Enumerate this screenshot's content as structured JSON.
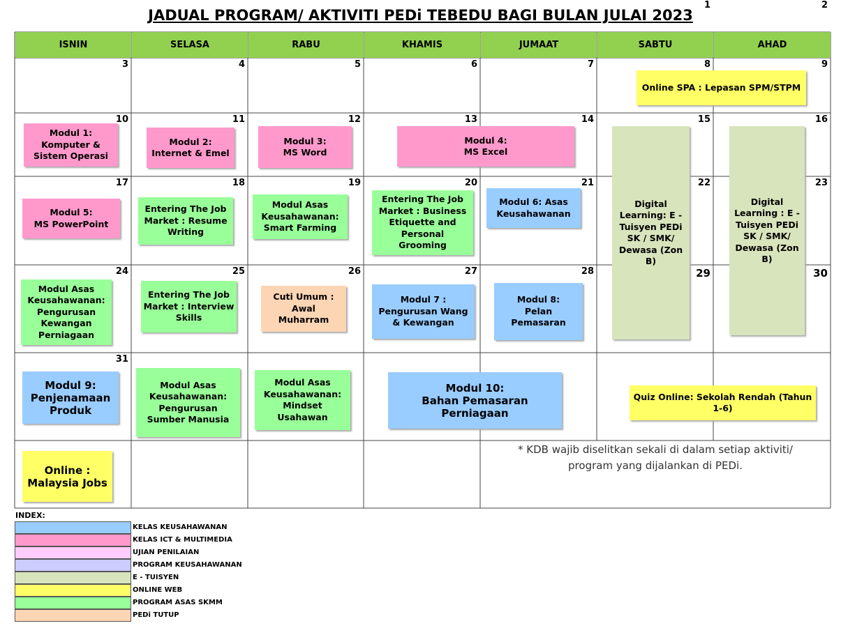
{
  "title": "JADUAL PROGRAM/ AKTIVITI PEDi TEBEDU BAGI BULAN JULAI 2023",
  "days_of_week": [
    "ISNIN",
    "SELASA",
    "RABU",
    "KHAMIS",
    "JUMAAT",
    "SABTU",
    "AHAD"
  ],
  "days": [
    1,
    2,
    3,
    4,
    5,
    6,
    7,
    8,
    9,
    10,
    11,
    12,
    13,
    14,
    15,
    16,
    17,
    18,
    19,
    20,
    21,
    22,
    23,
    24,
    25,
    26,
    27,
    28,
    29,
    30,
    31
  ],
  "events": [
    {
      "lines": [
        "Online SPA : Lepasan SPM/STPM"
      ],
      "color": "#ffff66"
    },
    {
      "lines": [
        "Modul 1:",
        "Komputer &",
        "Sistem Operasi"
      ],
      "color": "#ff99cc"
    },
    {
      "lines": [
        "Modul 2:",
        "Internet & Emel"
      ],
      "color": "#ff99cc"
    },
    {
      "lines": [
        "Modul 3:",
        "MS Word"
      ],
      "color": "#ff99cc"
    },
    {
      "lines": [
        "Modul 4:",
        "MS Excel"
      ],
      "color": "#ff99cc"
    },
    {
      "lines": [
        "Digital",
        "Learning: E -",
        "Tuisyen PEDi",
        "SK / SMK/",
        "Dewasa (Zon",
        "B)"
      ],
      "color": "#d8e4bc"
    },
    {
      "lines": [
        "Digital",
        "Learning : E -",
        "Tuisyen PEDi",
        "SK / SMK/",
        "Dewasa (Zon",
        "B)"
      ],
      "color": "#d8e4bc"
    },
    {
      "lines": [
        "Modul 5:",
        "MS PowerPoint"
      ],
      "color": "#ff99cc"
    },
    {
      "lines": [
        "Entering The Job",
        "Market : Resume",
        "Writing"
      ],
      "color": "#99ff99"
    },
    {
      "lines": [
        "Modul Asas",
        "Keusahawanan:",
        "Smart Farming"
      ],
      "color": "#99ff99"
    },
    {
      "lines": [
        "Entering The Job",
        "Market : Business",
        "Etiquette and",
        "Personal",
        "Grooming"
      ],
      "color": "#99ff99"
    },
    {
      "lines": [
        "Modul 6: Asas",
        "Keusahawanan"
      ],
      "color": "#99ccff"
    },
    {
      "lines": [
        "Modul Asas",
        "Keusahawanan:",
        "Pengurusan",
        "Kewangan",
        "Perniagaan"
      ],
      "color": "#99ff99"
    },
    {
      "lines": [
        "Entering The Job",
        "Market : Interview",
        "Skills"
      ],
      "color": "#99ff99"
    },
    {
      "lines": [
        "Cuti Umum :",
        "Awal",
        "Muharram"
      ],
      "color": "#fcd5b4"
    },
    {
      "lines": [
        "Modul 7 :",
        "Pengurusan Wang",
        "& Kewangan"
      ],
      "color": "#99ccff"
    },
    {
      "lines": [
        "Modul 8:",
        "Pelan",
        "Pemasaran"
      ],
      "color": "#99ccff"
    },
    {
      "lines": [
        "Modul 9:",
        "Penjenamaan",
        "Produk"
      ],
      "color": "#99ccff"
    },
    {
      "lines": [
        "Modul Asas",
        "Keusahawanan:",
        "Pengurusan",
        "Sumber Manusia"
      ],
      "color": "#99ff99"
    },
    {
      "lines": [
        "Modul Asas",
        "Keusahawanan:",
        "Mindset",
        "Usahawan"
      ],
      "color": "#99ff99"
    },
    {
      "lines": [
        "Modul 10:",
        "Bahan Pemasaran Perniagaan"
      ],
      "color": "#99ccff"
    },
    {
      "lines": [
        "Quiz Online: Sekolah Rendah (Tahun",
        "1-6)"
      ],
      "color": "#ffff66"
    },
    {
      "lines": [
        "Online :",
        "Malaysia Jobs"
      ],
      "color": "#ffff66"
    }
  ],
  "note": {
    "lines": [
      "* KDB wajib diselitkan sekali di dalam setiap aktiviti/",
      "program yang dijalankan di PEDi."
    ]
  },
  "legend": {
    "title": "INDEX:",
    "items": [
      {
        "label": "KELAS KEUSAHAWANAN",
        "color": "#99ccff"
      },
      {
        "label": "KELAS ICT & MULTIMEDIA",
        "color": "#ff99cc"
      },
      {
        "label": "UJIAN PENILAIAN",
        "color": "#ffccff"
      },
      {
        "label": "PROGRAM KEUSAHAWANAN",
        "color": "#ccccff"
      },
      {
        "label": "E - TUISYEN",
        "color": "#d8e4bc"
      },
      {
        "label": "ONLINE WEB",
        "color": "#ffff66"
      },
      {
        "label": "PROGRAM ASAS SKMM",
        "color": "#99ff99"
      },
      {
        "label": "PEDi TUTUP",
        "color": "#fcd5b4"
      }
    ]
  }
}
